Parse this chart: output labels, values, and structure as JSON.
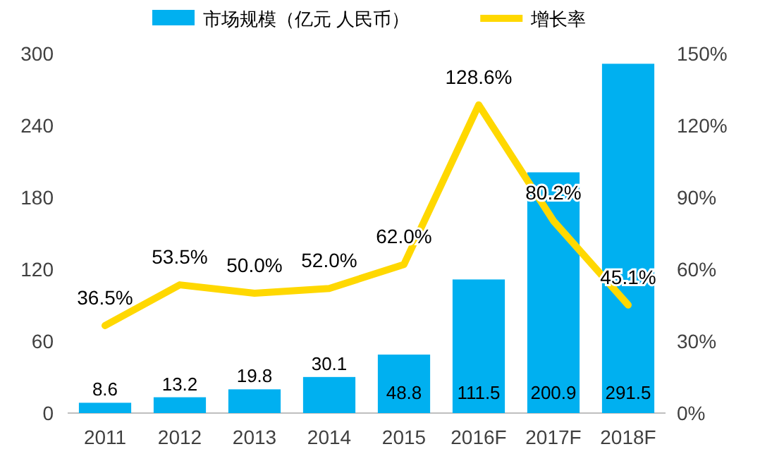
{
  "chart_data": {
    "type": "bar",
    "categories": [
      "2011",
      "2012",
      "2013",
      "2014",
      "2015",
      "2016F",
      "2017F",
      "2018F"
    ],
    "series": [
      {
        "name": "市场规模（亿元 人民币）",
        "color": "#00b0f0",
        "values": [
          8.6,
          13.2,
          19.8,
          30.1,
          48.8,
          111.5,
          200.9,
          291.5
        ],
        "value_labels": [
          "8.6",
          "13.2",
          "19.8",
          "30.1",
          "48.8",
          "111.5",
          "200.9",
          "291.5"
        ]
      },
      {
        "name": "增长率",
        "type": "line",
        "axis": "y2",
        "color": "#ffd800",
        "values": [
          36.5,
          53.5,
          50.0,
          52.0,
          62.0,
          128.6,
          80.2,
          45.1
        ],
        "value_labels": [
          "36.5%",
          "53.5%",
          "50.0%",
          "52.0%",
          "62.0%",
          "128.6%",
          "80.2%",
          "45.1%"
        ]
      }
    ],
    "ylim": [
      0,
      300
    ],
    "yticks": [
      0,
      60,
      120,
      180,
      240,
      300
    ],
    "y2lim": [
      0,
      150
    ],
    "y2ticks": [
      {
        "value": 0,
        "label": "0%"
      },
      {
        "value": 30,
        "label": "30%"
      },
      {
        "value": 60,
        "label": "60%"
      },
      {
        "value": 90,
        "label": "90%"
      },
      {
        "value": 120,
        "label": "120%"
      },
      {
        "value": 150,
        "label": "150%"
      }
    ],
    "legend": "top"
  }
}
